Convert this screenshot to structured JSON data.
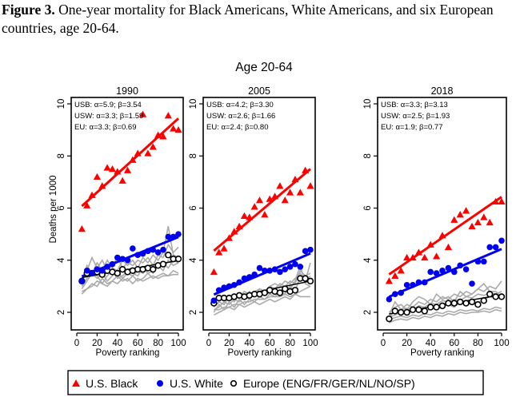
{
  "caption": {
    "label": "Figure 3.",
    "text": " One-year mortality for Black Americans, White Americans, and six European countries, age 20-64."
  },
  "chart_data": {
    "type": "scatter",
    "title": "Age 20-64",
    "ylabel": "Deaths per 1000",
    "xlabel": "Poverty ranking",
    "xlim": [
      0,
      100
    ],
    "ylim": [
      1.3,
      10.2
    ],
    "xticks": [
      0,
      20,
      40,
      60,
      80,
      100
    ],
    "yticks": [
      2,
      4,
      6,
      8,
      10
    ],
    "colors": {
      "usb": "#ff0000",
      "usw": "#0000ee",
      "eu": "#000000",
      "countries": "#aaaaaa"
    },
    "legend": {
      "placement": "bottom",
      "entries": [
        {
          "key": "usb",
          "label": "U.S. Black",
          "marker": "triangle"
        },
        {
          "key": "usw",
          "label": "U.S. White",
          "marker": "filled-circle"
        },
        {
          "key": "eu",
          "label": "Europe (ENG/FR/GER/NL/NO/SP)",
          "marker": "open-circle"
        }
      ]
    },
    "x": [
      5,
      10,
      15,
      20,
      25,
      30,
      35,
      40,
      45,
      50,
      55,
      60,
      65,
      70,
      75,
      80,
      85,
      90,
      95,
      100
    ],
    "panels": [
      {
        "title": "1990",
        "annotations": [
          "USB: α=5.9; β=3.54",
          "USW: α=3.3; β=1.59",
          "EU:  α=3.3; β=0.69"
        ],
        "fits": {
          "usb": [
            5.9,
            3.54
          ],
          "usw": [
            3.3,
            1.59
          ],
          "eu": [
            3.3,
            0.69
          ]
        },
        "series": {
          "usb": [
            5.2,
            6.1,
            6.5,
            7.2,
            6.85,
            7.55,
            7.5,
            7.4,
            7.05,
            7.45,
            7.85,
            8.1,
            9.6,
            8.1,
            8.35,
            8.8,
            8.75,
            9.55,
            9.05,
            9.0
          ],
          "usw": [
            3.2,
            3.6,
            3.5,
            3.65,
            3.6,
            3.75,
            3.85,
            4.1,
            4.05,
            4.0,
            4.45,
            4.2,
            4.25,
            4.35,
            4.4,
            4.3,
            4.4,
            4.9,
            4.9,
            5.0
          ],
          "eu": [
            3.2,
            3.5,
            3.5,
            3.55,
            3.45,
            3.6,
            3.55,
            3.5,
            3.65,
            3.55,
            3.6,
            3.65,
            3.65,
            3.7,
            3.65,
            3.8,
            3.85,
            4.2,
            4.05,
            4.05
          ],
          "countries": [
            [
              3.3,
              3.6,
              4.1,
              3.7,
              4.0,
              3.6,
              3.8,
              4.1,
              3.7,
              3.9,
              3.8,
              4.0,
              3.9,
              4.1,
              3.8,
              4.2,
              4.1,
              4.6,
              4.3,
              4.5
            ],
            [
              3.1,
              3.8,
              3.5,
              3.9,
              3.6,
              4.0,
              3.7,
              3.6,
              4.0,
              3.8,
              4.0,
              3.7,
              4.1,
              3.9,
              4.2,
              4.0,
              4.3,
              5.3,
              4.2,
              4.1
            ],
            [
              2.9,
              3.2,
              3.5,
              3.3,
              3.5,
              3.2,
              3.4,
              3.6,
              3.3,
              3.5,
              3.4,
              3.6,
              3.5,
              3.7,
              3.5,
              3.8,
              3.6,
              4.0,
              3.8,
              3.9
            ],
            [
              2.7,
              2.9,
              3.1,
              3.0,
              3.3,
              3.1,
              3.2,
              3.1,
              3.3,
              3.2,
              3.4,
              3.2,
              3.3,
              3.5,
              3.3,
              3.4,
              3.5,
              3.4,
              3.6,
              3.5
            ],
            [
              3.0,
              3.3,
              3.6,
              3.4,
              3.1,
              3.4,
              3.6,
              3.3,
              3.4,
              3.6,
              3.5,
              3.4,
              3.7,
              3.5,
              3.6,
              3.8,
              3.9,
              3.7,
              4.0,
              3.9
            ],
            [
              2.8,
              2.9,
              3.0,
              3.2,
              3.1,
              3.0,
              3.2,
              3.4,
              3.2,
              3.3,
              3.1,
              3.3,
              3.2,
              3.3,
              3.4,
              3.3,
              3.4,
              3.4,
              3.45,
              3.45
            ]
          ]
        }
      },
      {
        "title": "2005",
        "annotations": [
          "USB: α=4.2; β=3.30",
          "USW: α=2.6; β=1.66",
          "EU:  α=2.4; β=0.80"
        ],
        "fits": {
          "usb": [
            4.2,
            3.3
          ],
          "usw": [
            2.6,
            1.66
          ],
          "eu": [
            2.4,
            0.8
          ]
        },
        "series": {
          "usb": [
            3.55,
            4.3,
            4.45,
            4.85,
            5.1,
            5.3,
            5.7,
            5.65,
            6.05,
            6.3,
            5.75,
            6.35,
            6.45,
            6.85,
            6.3,
            6.6,
            7.1,
            6.6,
            7.45,
            6.85
          ],
          "usw": [
            2.45,
            2.85,
            2.95,
            3.0,
            3.05,
            3.15,
            3.3,
            3.35,
            3.45,
            3.7,
            3.6,
            3.6,
            3.65,
            3.55,
            3.65,
            3.75,
            3.85,
            3.75,
            4.35,
            4.4
          ],
          "eu": [
            2.35,
            2.55,
            2.55,
            2.55,
            2.6,
            2.65,
            2.6,
            2.65,
            2.7,
            2.7,
            2.75,
            2.85,
            2.8,
            2.75,
            2.9,
            2.8,
            2.85,
            3.3,
            3.3,
            3.2
          ],
          "countries": [
            [
              2.2,
              2.4,
              2.3,
              2.6,
              2.4,
              2.7,
              2.5,
              2.8,
              2.6,
              2.9,
              2.8,
              3.0,
              2.9,
              3.1,
              3.0,
              3.2,
              3.1,
              3.6,
              3.4,
              3.5
            ],
            [
              2.1,
              2.2,
              2.4,
              2.3,
              2.5,
              2.4,
              2.6,
              2.5,
              2.7,
              2.6,
              2.8,
              2.7,
              2.9,
              2.8,
              3.0,
              2.9,
              3.2,
              3.8,
              3.1,
              3.0
            ],
            [
              2.0,
              2.3,
              2.1,
              2.4,
              2.2,
              2.5,
              2.3,
              2.5,
              2.4,
              2.6,
              2.5,
              2.7,
              2.6,
              2.8,
              2.7,
              3.0,
              2.8,
              3.4,
              3.2,
              3.9
            ],
            [
              2.1,
              2.1,
              2.2,
              2.2,
              2.3,
              2.3,
              2.4,
              2.4,
              2.5,
              2.5,
              2.5,
              2.6,
              2.6,
              2.6,
              2.7,
              2.6,
              2.7,
              2.6,
              2.6,
              2.6
            ],
            [
              2.3,
              2.4,
              2.6,
              2.5,
              2.7,
              2.6,
              2.8,
              2.7,
              2.8,
              2.9,
              2.8,
              3.0,
              3.1,
              3.0,
              3.2,
              3.1,
              3.3,
              3.5,
              3.2,
              3.4
            ],
            [
              1.9,
              2.0,
              2.1,
              2.2,
              2.1,
              2.3,
              2.2,
              2.3,
              2.4,
              2.3,
              2.4,
              2.5,
              2.4,
              2.5,
              2.6,
              2.5,
              2.7,
              2.8,
              2.9,
              3.0
            ]
          ]
        }
      },
      {
        "title": "2018",
        "annotations": [
          "USB: α=3.3; β=3.13",
          "USW: α=2.5; β=1.93",
          "EU:  α=1.9; β=0.77"
        ],
        "fits": {
          "usb": [
            3.3,
            3.13
          ],
          "usw": [
            2.5,
            1.93
          ],
          "eu": [
            1.9,
            0.77
          ]
        },
        "series": {
          "usb": [
            3.2,
            3.4,
            3.6,
            4.1,
            4.1,
            4.3,
            4.1,
            4.6,
            4.15,
            4.95,
            4.5,
            5.55,
            5.75,
            5.9,
            5.3,
            5.45,
            5.65,
            5.45,
            6.25,
            6.25
          ],
          "usw": [
            2.5,
            2.7,
            2.75,
            3.05,
            3.05,
            3.15,
            3.15,
            3.55,
            3.5,
            3.6,
            3.7,
            3.55,
            3.8,
            3.65,
            3.1,
            3.95,
            3.95,
            4.5,
            4.5,
            4.75
          ],
          "eu": [
            1.75,
            2.05,
            2.0,
            2.0,
            2.1,
            2.1,
            2.05,
            2.2,
            2.2,
            2.25,
            2.35,
            2.35,
            2.4,
            2.35,
            2.4,
            2.3,
            2.45,
            2.7,
            2.6,
            2.6
          ],
          "countries": [
            [
              1.9,
              2.4,
              2.1,
              2.3,
              2.2,
              2.4,
              2.3,
              2.5,
              2.4,
              2.6,
              2.5,
              2.7,
              2.6,
              2.8,
              2.7,
              2.9,
              2.8,
              3.0,
              2.9,
              3.2
            ],
            [
              2.0,
              2.2,
              2.3,
              2.1,
              2.4,
              2.6,
              2.5,
              2.3,
              2.7,
              2.5,
              2.6,
              2.4,
              2.8,
              2.6,
              2.7,
              2.9,
              3.1,
              2.8,
              2.8,
              2.6
            ],
            [
              1.8,
              1.9,
              2.0,
              1.95,
              2.05,
              2.1,
              2.0,
              2.15,
              2.2,
              2.25,
              2.3,
              2.2,
              2.4,
              2.3,
              2.45,
              2.35,
              2.5,
              2.6,
              2.55,
              2.7
            ],
            [
              1.7,
              1.8,
              1.85,
              1.8,
              1.9,
              1.85,
              1.95,
              1.9,
              2.0,
              1.95,
              2.05,
              2.0,
              2.1,
              2.05,
              2.1,
              2.05,
              2.15,
              2.1,
              2.2,
              2.15
            ],
            [
              1.85,
              2.0,
              2.1,
              2.15,
              2.1,
              2.25,
              2.2,
              2.35,
              2.3,
              2.45,
              2.4,
              2.5,
              2.45,
              2.6,
              2.55,
              2.7,
              2.65,
              2.75,
              2.7,
              2.8
            ],
            [
              1.6,
              1.7,
              1.75,
              1.7,
              1.8,
              1.75,
              1.85,
              1.8,
              1.9,
              1.85,
              1.95,
              1.9,
              2.0,
              1.95,
              2.0,
              2.0,
              2.05,
              2.0,
              2.1,
              2.05
            ]
          ]
        }
      }
    ]
  }
}
